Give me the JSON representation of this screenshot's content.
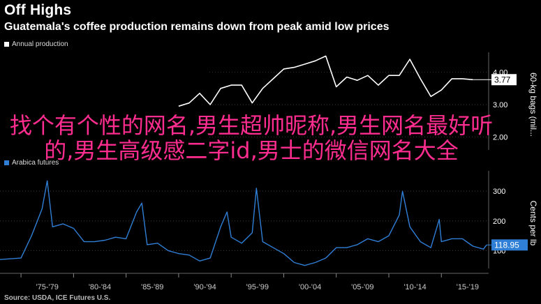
{
  "header": {
    "title": "Off Highs",
    "subtitle": "Guatemala's coffee production remains down from peak amid low prices"
  },
  "source": "Source: USDA, ICE Futures U.S.",
  "watermark": "找个有个性的网名,男生超帅昵称,男生网名最好听的,男生高级感二字id,男士的微信网名大全",
  "colors": {
    "background": "#000000",
    "production": "#ffffff",
    "arabica": "#2f7fd6",
    "grid": "#3a3a3a"
  },
  "chart_data": [
    {
      "type": "line",
      "legend": "Annual production",
      "ylabel": "60-kg bags (mil...",
      "ylim": [
        1.6,
        4.4
      ],
      "yticks": [
        "2.00",
        "3.00",
        "4.00"
      ],
      "ytick_values": [
        2.0,
        3.0,
        4.0
      ],
      "last_label": "3.77",
      "series": [
        {
          "name": "Annual production",
          "x": [
            1990,
            1991,
            1992,
            1993,
            1994,
            1995,
            1996,
            1997,
            1998,
            1999,
            2000,
            2001,
            2002,
            2003,
            2004,
            2005,
            2006,
            2007,
            2008,
            2009,
            2010,
            2011,
            2012,
            2013,
            2014,
            2015,
            2016,
            2017,
            2018
          ],
          "values": [
            2.95,
            3.05,
            3.35,
            3.0,
            3.5,
            3.6,
            3.6,
            3.05,
            3.5,
            3.8,
            4.1,
            4.15,
            4.25,
            4.35,
            4.5,
            3.55,
            3.85,
            3.75,
            3.9,
            3.6,
            3.9,
            3.9,
            4.4,
            3.8,
            3.25,
            3.45,
            3.8,
            3.8,
            3.77
          ]
        }
      ]
    },
    {
      "type": "line",
      "legend": "Arabica futures",
      "ylabel": "Cents per lb",
      "ylim": [
        40,
        345
      ],
      "yticks": [
        "100",
        "200",
        "300"
      ],
      "ytick_values": [
        100,
        200,
        300
      ],
      "last_label": "118.95",
      "categories": [
        "'75-'79",
        "'80-'84",
        "'85-'89",
        "'90-'94",
        "'95-'99",
        "'00-'04",
        "'05-'09",
        "'10-'14",
        "'15-'19"
      ],
      "series": [
        {
          "name": "Arabica",
          "x": [
            1973,
            1975,
            1976,
            1977,
            1977.5,
            1978,
            1979,
            1980,
            1981,
            1982,
            1983,
            1984,
            1985,
            1986,
            1986.5,
            1987,
            1988,
            1989,
            1990,
            1991,
            1992,
            1993,
            1994,
            1994.6,
            1995,
            1996,
            1997,
            1997.4,
            1998,
            1999,
            2000,
            2001,
            2002,
            2003,
            2004,
            2005,
            2006,
            2007,
            2008,
            2009,
            2010,
            2011,
            2011.3,
            2012,
            2013,
            2014,
            2014.8,
            2015,
            2016,
            2017,
            2018,
            2019,
            2019.3
          ],
          "values": [
            70,
            75,
            150,
            240,
            335,
            180,
            190,
            175,
            130,
            130,
            135,
            145,
            140,
            230,
            260,
            120,
            125,
            100,
            90,
            85,
            65,
            75,
            180,
            230,
            145,
            125,
            160,
            310,
            130,
            110,
            90,
            60,
            50,
            60,
            75,
            110,
            110,
            120,
            140,
            130,
            150,
            220,
            300,
            180,
            130,
            110,
            205,
            130,
            140,
            140,
            115,
            105,
            119
          ]
        }
      ]
    }
  ]
}
